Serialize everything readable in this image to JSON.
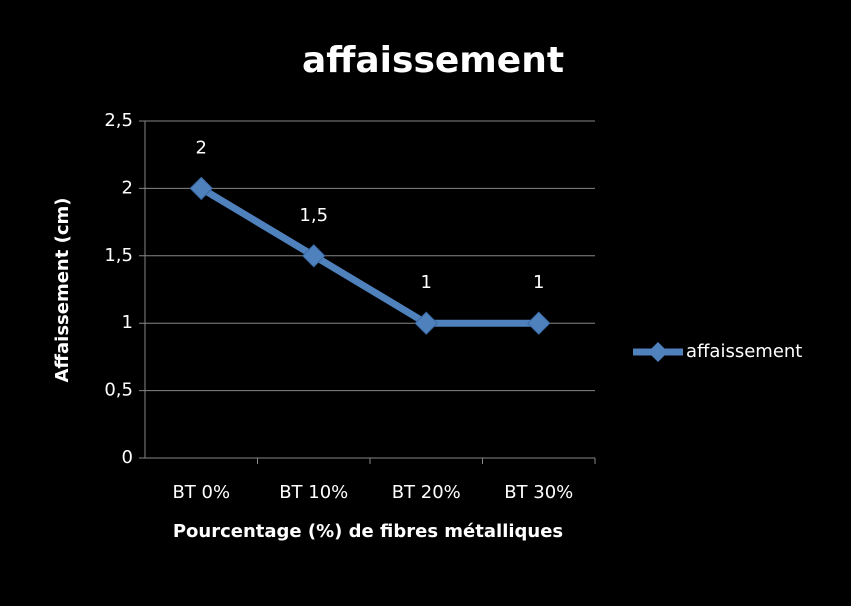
{
  "chart_data": {
    "type": "line",
    "title": "affaissement",
    "x_label": "Pourcentage (%) de fibres métalliques",
    "y_label": "Affaissement (cm)",
    "categories": [
      "BT 0%",
      "BT 10%",
      "BT 20%",
      "BT 30%"
    ],
    "series": [
      {
        "name": "affaissement",
        "color": "#4f81bd",
        "values": [
          2,
          1.5,
          1,
          1
        ],
        "value_labels": [
          "2",
          "1,5",
          "1",
          "1"
        ]
      }
    ],
    "ylim": [
      0,
      2.5
    ],
    "yticks": [
      0,
      {
        "value": 0.5,
        "label": "0,5"
      },
      1,
      {
        "value": 1.5,
        "label": "1,5"
      },
      2,
      {
        "value": 2.5,
        "label": "2,5"
      }
    ],
    "grid": true,
    "legend": "right"
  }
}
